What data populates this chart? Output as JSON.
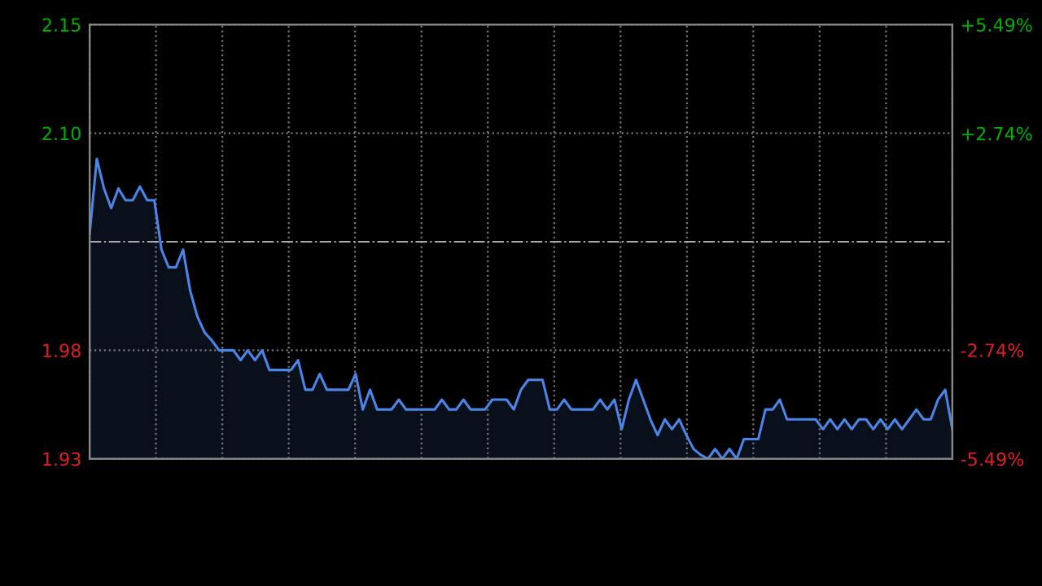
{
  "chart_data": {
    "type": "area",
    "categories": [
      null,
      null,
      null,
      null,
      null,
      null,
      null,
      null,
      null,
      null,
      null,
      null,
      null,
      null,
      null,
      null,
      null,
      null,
      null,
      null,
      null,
      null,
      null,
      null,
      null,
      null,
      null,
      null,
      null,
      null,
      null,
      null,
      null,
      null,
      null,
      null,
      null,
      null,
      null,
      null,
      null,
      null,
      null,
      null,
      null,
      null,
      null,
      null,
      null,
      null,
      null,
      null,
      null,
      null,
      null,
      null,
      null,
      null,
      null,
      null,
      null,
      null,
      null,
      null,
      null,
      null,
      null,
      null,
      null,
      null,
      null,
      null,
      null,
      null,
      null,
      null,
      null,
      null,
      null,
      null,
      null,
      null,
      null,
      null,
      null,
      null,
      null,
      null,
      null,
      null,
      null,
      null,
      null,
      null,
      null,
      null,
      null,
      null,
      null,
      null,
      null,
      null,
      null,
      null,
      null,
      null,
      null,
      null,
      null,
      null,
      null,
      null,
      null,
      null,
      null,
      null,
      null,
      null,
      null,
      null,
      null
    ],
    "series": [
      {
        "color": "#4a86e8",
        "values": [
          2.044,
          2.082,
          2.067,
          2.057,
          2.067,
          2.061,
          2.061,
          2.068,
          2.061,
          2.061,
          2.036,
          2.027,
          2.027,
          2.036,
          2.015,
          2.002,
          1.994,
          1.99,
          1.985,
          1.985,
          1.985,
          1.98,
          1.985,
          1.98,
          1.985,
          1.975,
          1.975,
          1.975,
          1.975,
          1.98,
          1.965,
          1.965,
          1.973,
          1.965,
          1.965,
          1.965,
          1.965,
          1.973,
          1.955,
          1.965,
          1.955,
          1.955,
          1.955,
          1.96,
          1.955,
          1.955,
          1.955,
          1.955,
          1.955,
          1.96,
          1.955,
          1.955,
          1.96,
          1.955,
          1.955,
          1.955,
          1.96,
          1.96,
          1.96,
          1.955,
          1.965,
          1.97,
          1.97,
          1.97,
          1.955,
          1.955,
          1.96,
          1.955,
          1.955,
          1.955,
          1.955,
          1.96,
          1.955,
          1.96,
          1.945,
          1.96,
          1.97,
          1.96,
          1.95,
          1.942,
          1.95,
          1.945,
          1.95,
          1.942,
          1.935,
          1.932,
          1.93,
          1.935,
          1.93,
          1.935,
          1.93,
          1.94,
          1.94,
          1.94,
          1.955,
          1.955,
          1.96,
          1.95,
          1.95,
          1.95,
          1.95,
          1.95,
          1.945,
          1.95,
          1.945,
          1.95,
          1.945,
          1.95,
          1.95,
          1.945,
          1.95,
          1.945,
          1.95,
          1.945,
          1.95,
          1.955,
          1.95,
          1.95,
          1.96,
          1.965,
          1.945
        ]
      }
    ],
    "ylim": [
      1.93,
      2.15
    ],
    "yticks": [
      1.93,
      {
        "value": 1.985,
        "label": "1.98"
      },
      {
        "value": 2.095,
        "label": "2.10"
      },
      2.15
    ],
    "y2lim": [
      -5.49,
      5.49
    ],
    "y2ticks": [
      {
        "value": -5.49,
        "label": "-5.49%"
      },
      {
        "value": -2.74,
        "label": "-2.74%"
      },
      {
        "value": 2.74,
        "label": "+2.74%"
      },
      {
        "value": 5.49,
        "label": "+5.49%"
      }
    ],
    "ref_lines": [
      {
        "axis": "y",
        "value": 2.04,
        "color": "#aaaaaa",
        "line_style": "dashdot"
      }
    ],
    "grid": true
  }
}
